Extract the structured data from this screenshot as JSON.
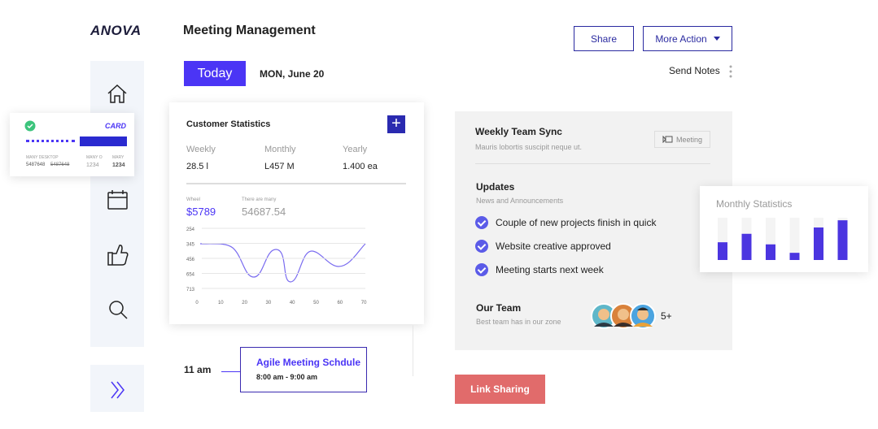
{
  "logo": "ANOVA",
  "header": {
    "title": "Meeting Management",
    "share": "Share",
    "more_action": "More Action",
    "today": "Today",
    "date": "MON, June 20",
    "send_notes": "Send Notes"
  },
  "card_widget": {
    "title": "CARD",
    "col1_label": "MANY DESKTOP",
    "col1_values": [
      "5487648",
      "5487648"
    ],
    "col2_label": "MANY O",
    "col2_value": "1234",
    "col3_label": "MARY",
    "col3_value": "1234"
  },
  "customer_statistics": {
    "title": "Customer Statistics",
    "stats": [
      {
        "label": "Weekly",
        "value": "28.5 l"
      },
      {
        "label": "Monthly",
        "value": "L457 M"
      },
      {
        "label": "Yearly",
        "value": "1.400 ea"
      }
    ],
    "metric1": {
      "label": "Wheel",
      "value": "$5789"
    },
    "metric2": {
      "label": "There are many",
      "value": "54687.54"
    },
    "y_labels": [
      "254",
      "345",
      "456",
      "654",
      "713"
    ],
    "x_labels": [
      "0",
      "10",
      "20",
      "30",
      "40",
      "50",
      "60",
      "70"
    ]
  },
  "weekly_sync": {
    "title": "Weekly Team Sync",
    "subtitle": "Mauris lobortis suscipit neque ut.",
    "tag": "Meeting"
  },
  "updates": {
    "title": "Updates",
    "subtitle": "News and Announcements",
    "items": [
      "Couple of new projects finish in quick",
      "Website creative approved",
      "Meeting starts next week"
    ]
  },
  "team": {
    "title": "Our Team",
    "subtitle": "Best team has in our zone",
    "more": "5+"
  },
  "monthly_statistics": {
    "title": "Monthly Statistics",
    "values": [
      42,
      62,
      37,
      17,
      77,
      94
    ]
  },
  "schedule": {
    "time": "11 am",
    "title": "Agile Meeting Schdule",
    "range": "8:00 am - 9:00 am"
  },
  "link_sharing": "Link Sharing"
}
